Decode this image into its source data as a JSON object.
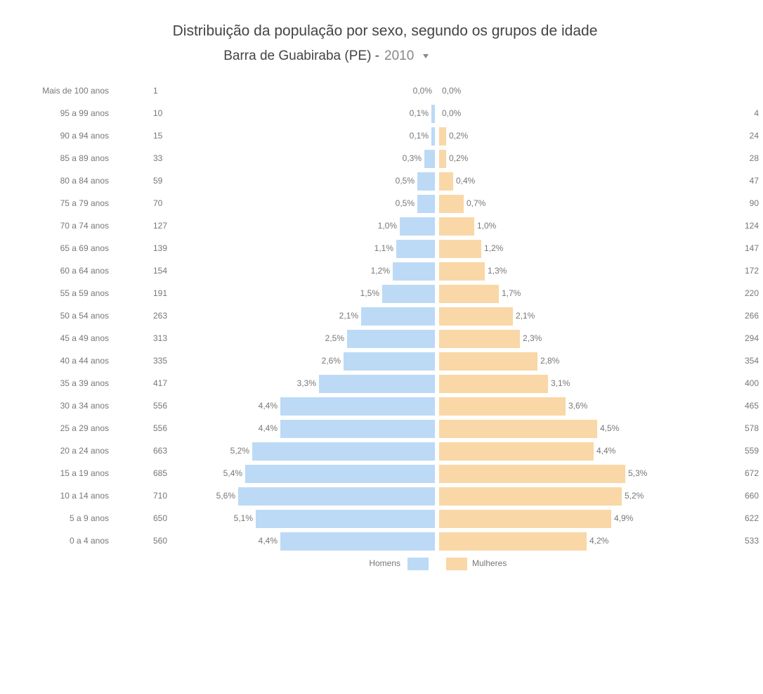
{
  "chart_data": {
    "type": "pyramid",
    "title": "Distribuição da população por sexo, segundo os grupos de idade",
    "subtitle": "Barra de Guabiraba (PE) -",
    "year": "2010",
    "categories": [
      "Mais de 100 anos",
      "95 a 99 anos",
      "90 a 94 anos",
      "85 a 89 anos",
      "80 a 84 anos",
      "75 a 79 anos",
      "70 a 74 anos",
      "65 a 69 anos",
      "60 a 64 anos",
      "55 a 59 anos",
      "50 a 54 anos",
      "45 a 49 anos",
      "40 a 44 anos",
      "35 a 39 anos",
      "30 a 34 anos",
      "25 a 29 anos",
      "20 a 24 anos",
      "15 a 19 anos",
      "10 a 14 anos",
      "5 a 9 anos",
      "0 a 4 anos"
    ],
    "series": [
      {
        "name": "Homens",
        "color": "#bcdaf6",
        "values": [
          0.0,
          0.1,
          0.1,
          0.3,
          0.5,
          0.5,
          1.0,
          1.1,
          1.2,
          1.5,
          2.1,
          2.5,
          2.6,
          3.3,
          4.4,
          4.4,
          5.2,
          5.4,
          5.6,
          5.1,
          4.4
        ],
        "value_labels": [
          "0,0%",
          "0,1%",
          "0,1%",
          "0,3%",
          "0,5%",
          "0,5%",
          "1,0%",
          "1,1%",
          "1,2%",
          "1,5%",
          "2,1%",
          "2,5%",
          "2,6%",
          "3,3%",
          "4,4%",
          "4,4%",
          "5,2%",
          "5,4%",
          "5,6%",
          "5,1%",
          "4,4%"
        ],
        "counts": [
          1,
          10,
          15,
          33,
          59,
          70,
          127,
          139,
          154,
          191,
          263,
          313,
          335,
          417,
          556,
          556,
          663,
          685,
          710,
          650,
          560
        ]
      },
      {
        "name": "Mulheres",
        "color": "#fad7a6",
        "values": [
          0.0,
          0.0,
          0.2,
          0.2,
          0.4,
          0.7,
          1.0,
          1.2,
          1.3,
          1.7,
          2.1,
          2.3,
          2.8,
          3.1,
          3.6,
          4.5,
          4.4,
          5.3,
          5.2,
          4.9,
          4.2
        ],
        "value_labels": [
          "0,0%",
          "0,0%",
          "0,2%",
          "0,2%",
          "0,4%",
          "0,7%",
          "1,0%",
          "1,2%",
          "1,3%",
          "1,7%",
          "2,1%",
          "2,3%",
          "2,8%",
          "3,1%",
          "3,6%",
          "4,5%",
          "4,4%",
          "5,3%",
          "5,2%",
          "4,9%",
          "4,2%"
        ],
        "counts": [
          null,
          4,
          24,
          28,
          47,
          90,
          124,
          147,
          172,
          220,
          266,
          294,
          354,
          400,
          465,
          578,
          559,
          672,
          660,
          622,
          533
        ]
      }
    ]
  }
}
